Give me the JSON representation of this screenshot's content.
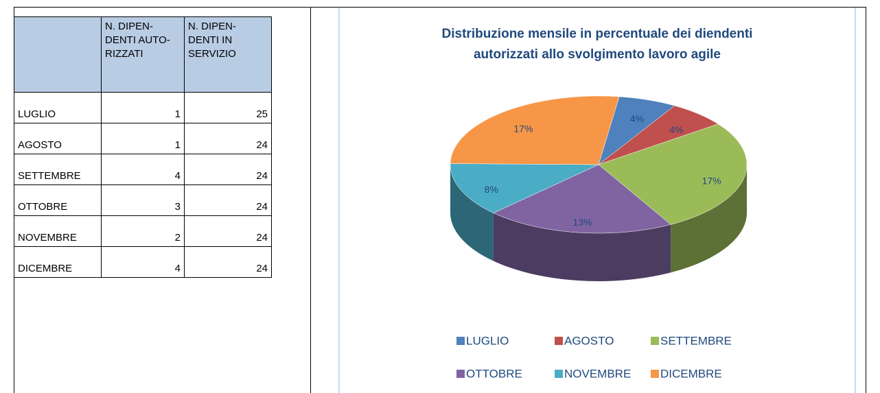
{
  "table": {
    "headers": [
      [
        "N. DIPEN-",
        "DENTI AUTO-",
        "RIZZATI"
      ],
      [
        "N. DIPEN-",
        "DENTI IN",
        "SERVIZIO"
      ]
    ],
    "rows": [
      [
        "LUGLIO",
        1,
        25
      ],
      [
        "AGOSTO",
        1,
        24
      ],
      [
        "SETTEMBRE",
        4,
        24
      ],
      [
        "OTTOBRE",
        3,
        24
      ],
      [
        "NOVEMBRE",
        2,
        24
      ],
      [
        "DICEMBRE",
        4,
        24
      ]
    ]
  },
  "chart_data": {
    "type": "pie",
    "title": [
      "Distribuzione mensile in percentuale dei diendenti",
      "autorizzati allo svolgimento lavoro agile"
    ],
    "categories": [
      "LUGLIO",
      "AGOSTO",
      "SETTEMBRE",
      "OTTOBRE",
      "NOVEMBRE",
      "DICEMBRE"
    ],
    "values": [
      4,
      4,
      17,
      13,
      8,
      17
    ],
    "value_labels": [
      "4%",
      "4%",
      "17%",
      "13%",
      "8%",
      "17%"
    ],
    "colors": [
      "#4f81bd",
      "#c0504d",
      "#9bbb59",
      "#8064a2",
      "#4bacc6",
      "#f79646"
    ],
    "legend": "bottom"
  }
}
